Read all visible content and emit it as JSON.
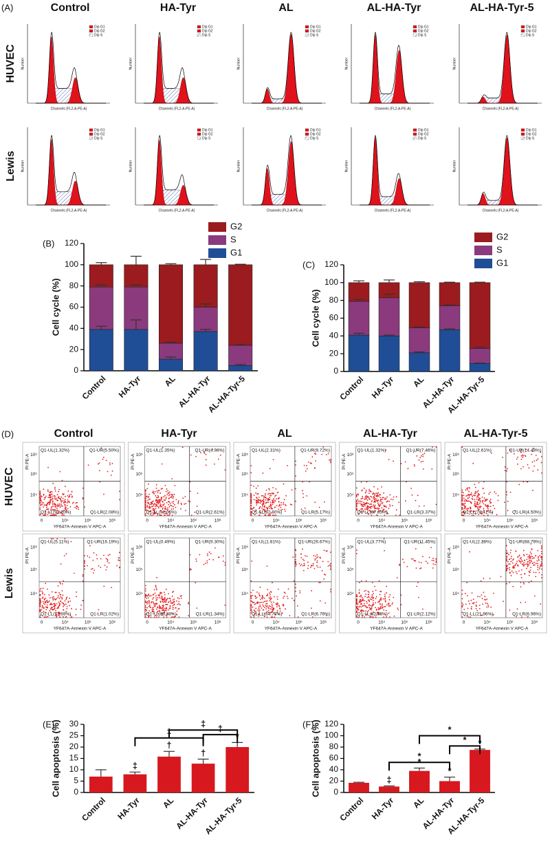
{
  "cell_cycle_histograms": {
    "label": "(A)",
    "columns": [
      "Control",
      "HA-Tyr",
      "AL",
      "AL-HA-Tyr",
      "AL-HA-Tyr-5"
    ],
    "rows": [
      "HUVEC",
      "Lewis"
    ],
    "x_label": "Channels (FL2-A-PE-A)",
    "y_label": "Number",
    "legend": [
      "Dip G1",
      "Dip G2",
      "Dip S"
    ]
  },
  "apoptosis_scatter": {
    "label": "(D)",
    "columns": [
      "Control",
      "HA-Tyr",
      "AL",
      "AL-HA-Tyr",
      "AL-HA-Tyr-5"
    ],
    "rows": [
      "HUVEC",
      "Lewis"
    ],
    "x_label": "YF647A-Annexin V APC-A",
    "y_label": "PI PE-A",
    "x_tick_labels": [
      "0",
      "10⁴",
      "10⁵",
      "10⁶"
    ],
    "y_tick_labels": [
      "10⁶",
      "10⁵",
      "10⁴"
    ],
    "plots": [
      [
        {
          "values": [
            1.32,
            5.5,
            91.1,
            2.08
          ],
          "value_labels": [
            "Q1-UL(1.32%)",
            "Q1-UR(5.50%)",
            "Q1-LL(91.10%)",
            "Q1-LR(2.08%)"
          ]
        },
        {
          "values": [
            1.35,
            4.98,
            91.06,
            2.61
          ],
          "value_labels": [
            "Q1-UL(1.35%)",
            "Q1-UR(4.98%)",
            "Q1-LL(91.06%)",
            "Q1-LR(2.61%)"
          ]
        },
        {
          "values": [
            2.31,
            9.72,
            82.8,
            5.17
          ],
          "value_labels": [
            "Q1-UL(2.31%)",
            "Q1-UR(9.72%)",
            "Q1-LL(82.80%)",
            "Q1-LR(5.17%)"
          ]
        },
        {
          "values": [
            1.32,
            7.46,
            87.85,
            3.37
          ],
          "value_labels": [
            "Q1-UL(1.32%)",
            "Q1-UR(7.46%)",
            "Q1-LL(87.85%)",
            "Q1-LR(3.37%)"
          ]
        },
        {
          "values": [
            2.61,
            14.48,
            78.41,
            4.5
          ],
          "value_labels": [
            "Q1-UL(2.61%)",
            "Q1-UR(14.48%)",
            "Q1-LL(78.41%)",
            "Q1-LR(4.50%)"
          ]
        }
      ],
      [
        {
          "values": [
            5.11,
            16.19,
            77.69,
            1.02
          ],
          "value_labels": [
            "Q1-UL(5.11%)",
            "Q1-UR(16.19%)",
            "Q1-LL(77.69%)",
            "Q1-LR(1.02%)"
          ]
        },
        {
          "values": [
            0.49,
            9.3,
            88.88,
            1.34
          ],
          "value_labels": [
            "Q1-UL(0.49%)",
            "Q1-UR(9.30%)",
            "Q1-LL(88.88%)",
            "Q1-LR(1.34%)"
          ]
        },
        {
          "values": [
            1.81,
            26.67,
            64.75,
            6.76
          ],
          "value_labels": [
            "Q1-UL(1.81%)",
            "Q1-UR(26.67%)",
            "Q1-LL(64.75%)",
            "Q1-LR(6.76%)"
          ]
        },
        {
          "values": [
            3.77,
            11.45,
            82.66,
            2.12
          ],
          "value_labels": [
            "Q1-UL(3.77%)",
            "Q1-UR(11.45%)",
            "Q1-LL(82.66%)",
            "Q1-LR(2.12%)"
          ]
        },
        {
          "values": [
            2.28,
            68.79,
            21.96,
            6.96
          ],
          "value_labels": [
            "Q1-UL(2.28%)",
            "Q1-UR(68.79%)",
            "Q1-LL(21.96%)",
            "Q1-LR(6.96%)"
          ]
        }
      ]
    ]
  },
  "chart_data": [
    {
      "type": "stacked_bar",
      "title": "(B)",
      "y_label": "Cell cycle (%)",
      "categories": [
        "Control",
        "HA-Tyr",
        "AL",
        "AL-HA-Tyr",
        "AL-HA-Tyr-5"
      ],
      "series": [
        {
          "name": "G1",
          "color": "#1f4e96",
          "values": [
            39,
            39,
            11,
            37,
            5
          ],
          "errors": [
            3,
            9,
            2,
            2,
            1
          ]
        },
        {
          "name": "S",
          "color": "#8b3a7e",
          "values": [
            40,
            40,
            15,
            23,
            19
          ],
          "errors": [
            2,
            2,
            1,
            3,
            1
          ]
        },
        {
          "name": "G2",
          "color": "#9b1b1e",
          "values": [
            21,
            21,
            74,
            40,
            76
          ],
          "errors": [
            2,
            8,
            1,
            5,
            0.5
          ]
        }
      ],
      "ylim": [
        0,
        120
      ],
      "yticks": [
        0,
        20,
        40,
        60,
        80,
        100,
        120
      ],
      "legend": "top-right"
    },
    {
      "type": "stacked_bar",
      "title": "(C)",
      "y_label": "Cell cycle (%)",
      "categories": [
        "Control",
        "HA-Tyr",
        "AL",
        "AL-HA-Tyr",
        "AL-HA-Tyr-5"
      ],
      "series": [
        {
          "name": "G1",
          "color": "#1f4e96",
          "values": [
            41,
            40,
            21,
            47,
            9
          ],
          "errors": [
            2,
            1,
            1,
            1,
            0.5
          ]
        },
        {
          "name": "S",
          "color": "#8b3a7e",
          "values": [
            38,
            43,
            28,
            27,
            17
          ],
          "errors": [
            2,
            4,
            1,
            1,
            1
          ]
        },
        {
          "name": "G2",
          "color": "#9b1b1e",
          "values": [
            21,
            17,
            51,
            26,
            74
          ],
          "errors": [
            2,
            3,
            1,
            0.5,
            0.5
          ]
        }
      ],
      "ylim": [
        0,
        120
      ],
      "yticks": [
        0,
        20,
        40,
        60,
        80,
        100,
        120
      ],
      "legend": "top-right"
    },
    {
      "type": "bar",
      "title": "(E)",
      "y_label": "Cell apoptosis (%)",
      "categories": [
        "Control",
        "HA-Tyr",
        "AL",
        "AL-HA-Tyr",
        "AL-HA-Tyr-5"
      ],
      "values": [
        7,
        8,
        15.8,
        12.7,
        20
      ],
      "errors": [
        3,
        1,
        2.3,
        2,
        2
      ],
      "color": "#d7191f",
      "annotations": [
        null,
        "‡",
        "†",
        "†",
        "*"
      ],
      "brackets": [
        {
          "from": "HA-Tyr",
          "to": "AL-HA-Tyr",
          "y": 24,
          "label": "‡"
        },
        {
          "from": "AL-HA-Tyr",
          "to": "AL-HA-Tyr-5",
          "y": 25.5,
          "label": "‡"
        },
        {
          "from": "AL",
          "to": "AL-HA-Tyr-5",
          "y": 27.5,
          "label": "‡"
        }
      ],
      "ylim": [
        0,
        30
      ],
      "yticks": [
        0,
        5,
        10,
        15,
        20,
        25,
        30
      ]
    },
    {
      "type": "bar",
      "title": "(F)",
      "y_label": "Cell apoptosis (%)",
      "categories": [
        "Control",
        "HA-Tyr",
        "AL",
        "AL-HA-Tyr",
        "AL-HA-Tyr-5"
      ],
      "values": [
        17,
        10.5,
        38,
        20,
        75
      ],
      "errors": [
        1,
        1,
        5,
        7,
        1.5
      ],
      "color": "#d7191f",
      "annotations": [
        null,
        "‡",
        "*",
        "*",
        "*"
      ],
      "brackets": [
        {
          "from": "HA-Tyr",
          "to": "AL-HA-Tyr",
          "y": 53,
          "label": "*"
        },
        {
          "from": "AL-HA-Tyr",
          "to": "AL-HA-Tyr-5",
          "y": 82,
          "label": "*"
        },
        {
          "from": "AL",
          "to": "AL-HA-Tyr-5",
          "y": 100,
          "label": "*"
        }
      ],
      "ylim": [
        0,
        120
      ],
      "yticks": [
        0,
        20,
        40,
        60,
        80,
        100,
        120
      ]
    }
  ]
}
